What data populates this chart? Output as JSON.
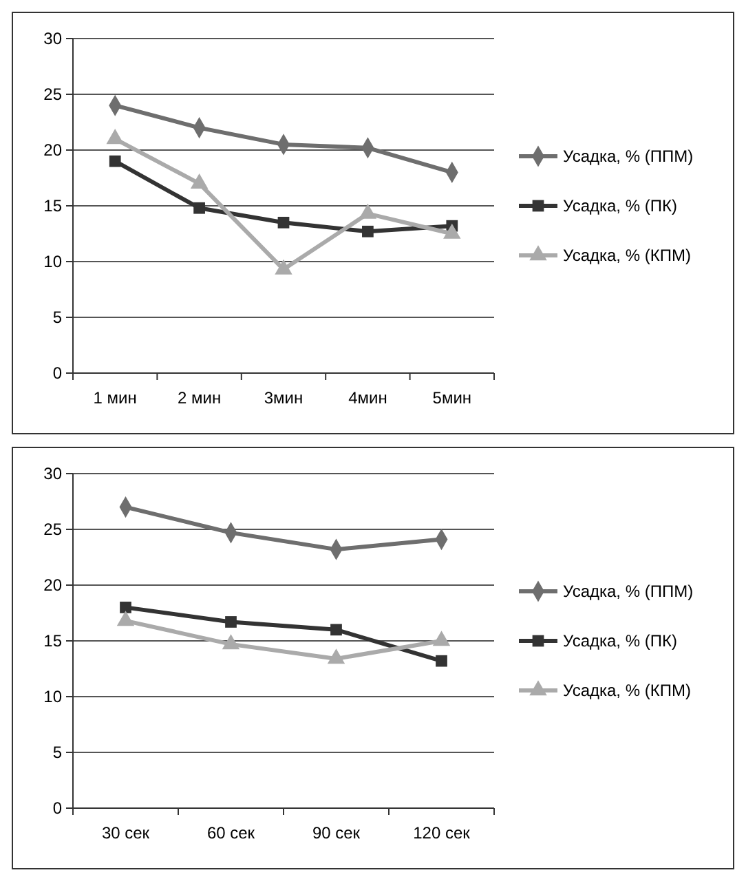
{
  "chart_data": [
    {
      "type": "line",
      "categories": [
        "1 мин",
        "2 мин",
        "3мин",
        "4мин",
        "5мин"
      ],
      "ylim": [
        0,
        30
      ],
      "yticks": [
        0,
        5,
        10,
        15,
        20,
        25,
        30
      ],
      "grid": "y",
      "legend": "right",
      "series": [
        {
          "name": "Усадка, % (ППМ)",
          "color": "#6e6e6e",
          "marker": "diamond",
          "values": [
            24,
            22,
            20.5,
            20.2,
            18
          ]
        },
        {
          "name": "Усадка, % (ПК)",
          "color": "#333333",
          "marker": "square",
          "values": [
            19,
            14.8,
            13.5,
            12.7,
            13.2
          ]
        },
        {
          "name": "Усадка, % (КПМ)",
          "color": "#aaaaaa",
          "marker": "triangle",
          "values": [
            21,
            17,
            9.3,
            14.3,
            12.5
          ]
        }
      ]
    },
    {
      "type": "line",
      "categories": [
        "30 сек",
        "60 сек",
        "90 сек",
        "120 сек"
      ],
      "ylim": [
        0,
        30
      ],
      "yticks": [
        0,
        5,
        10,
        15,
        20,
        25,
        30
      ],
      "grid": "y",
      "legend": "right",
      "series": [
        {
          "name": "Усадка, % (ППМ)",
          "color": "#6e6e6e",
          "marker": "diamond",
          "values": [
            27,
            24.7,
            23.2,
            24.1
          ]
        },
        {
          "name": "Усадка, % (ПК)",
          "color": "#333333",
          "marker": "square",
          "values": [
            18,
            16.7,
            16,
            13.2
          ]
        },
        {
          "name": "Усадка, % (КПМ)",
          "color": "#aaaaaa",
          "marker": "triangle",
          "values": [
            16.8,
            14.7,
            13.4,
            15
          ]
        }
      ]
    }
  ]
}
